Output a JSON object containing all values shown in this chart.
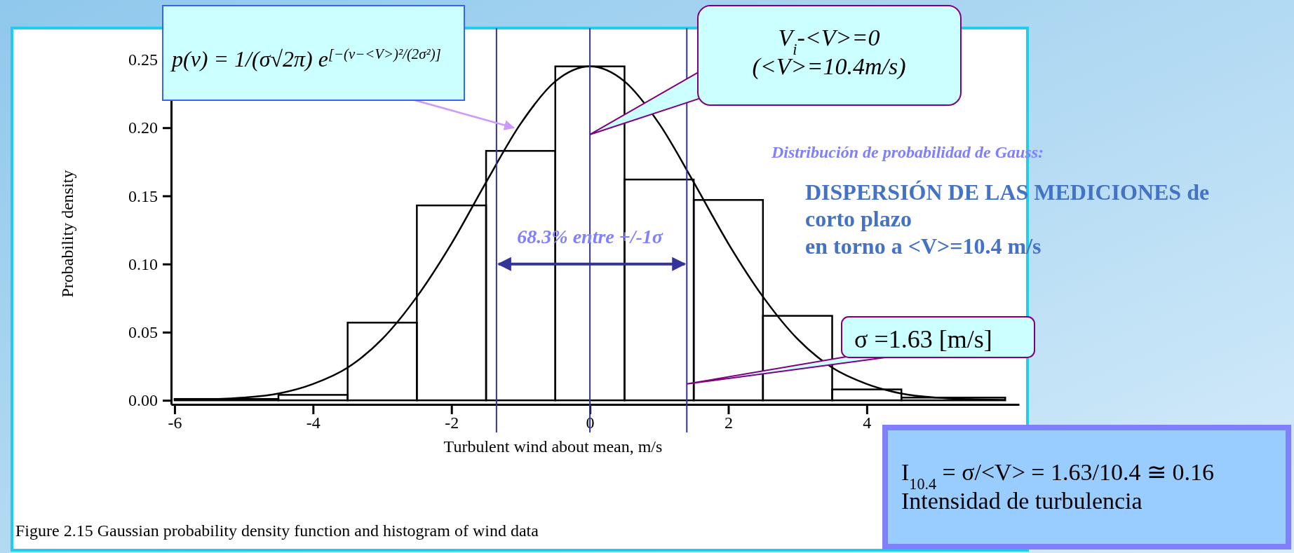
{
  "chart_data": {
    "type": "histogram",
    "xlabel": "Turbulent wind about mean, m/s",
    "ylabel": "Probability density",
    "bins": [
      -6,
      -4.5,
      -3.5,
      -2.5,
      -1.5,
      -0.5,
      0.5,
      1.5,
      2.5,
      3.5,
      4.5,
      6
    ],
    "values": [
      0.001,
      0.004,
      0.057,
      0.143,
      0.183,
      0.245,
      0.162,
      0.147,
      0.062,
      0.008,
      0.002
    ],
    "color": "#000000",
    "series": [
      {
        "type": "line",
        "color": "#000000",
        "x": [
          -6,
          -5.5,
          -5,
          -4.5,
          -4,
          -3.5,
          -3,
          -2.5,
          -2,
          -1.5,
          -1,
          -0.5,
          0,
          0.5,
          1,
          1.5,
          2,
          2.5,
          3,
          3.5,
          4,
          4.5,
          5,
          5.5,
          6
        ],
        "values": [
          0.0003,
          0.0008,
          0.002,
          0.005,
          0.012,
          0.024,
          0.045,
          0.076,
          0.115,
          0.16,
          0.203,
          0.234,
          0.245,
          0.234,
          0.203,
          0.16,
          0.115,
          0.076,
          0.045,
          0.024,
          0.012,
          0.005,
          0.002,
          0.0008,
          0.0003
        ]
      }
    ],
    "xlim": [
      -6.05,
      6.2
    ],
    "xticks": [
      -6,
      -4,
      -2,
      0,
      2,
      4
    ],
    "ylim": [
      -0.003,
      0.268
    ],
    "yticks": [
      {
        "value": 0,
        "label": "0.00"
      },
      {
        "value": 0.05,
        "label": "0.05"
      },
      {
        "value": 0.1,
        "label": "0.10"
      },
      {
        "value": 0.15,
        "label": "0.15"
      },
      {
        "value": 0.2,
        "label": "0.20"
      },
      {
        "value": 0.25,
        "label": "0.25"
      }
    ],
    "ref_lines": [
      {
        "axis": "x",
        "value": 0,
        "color": "#333399"
      },
      {
        "axis": "x",
        "value": -1.35,
        "color": "#333399"
      },
      {
        "axis": "x",
        "value": 1.4,
        "color": "#333399"
      }
    ],
    "annotations": [
      {
        "text": "p(v) = 1/(σ√2π) e$^{[−(v−<V>)²/(2σ²)]}$",
        "x": -1.1,
        "y": 0.2
      },
      {
        "text": "V$_{i}$-<V>=0\n(<V>=10.4m/s)",
        "x": 0,
        "y": 0.195
      },
      {
        "text": "68.3% entre +/-1σ",
        "x": 0,
        "y": 0.1
      },
      {
        "text": "σ =1.63 [m/s]",
        "x": 1.4,
        "y": 0.012
      },
      "Distribución de probabilidad de Gauss:",
      "DISPERSIÓN DE LAS MEDICIONES de\ncorto plazo\nen torno a <V>=10.4 m/s",
      "I$_{10.4}$ = σ/<V> = 1.63/10.4 ≅ 0.16\nIntensidad de turbulencia",
      "Figure 2.15   Gaussian probability density function and histogram of wind data"
    ]
  }
}
